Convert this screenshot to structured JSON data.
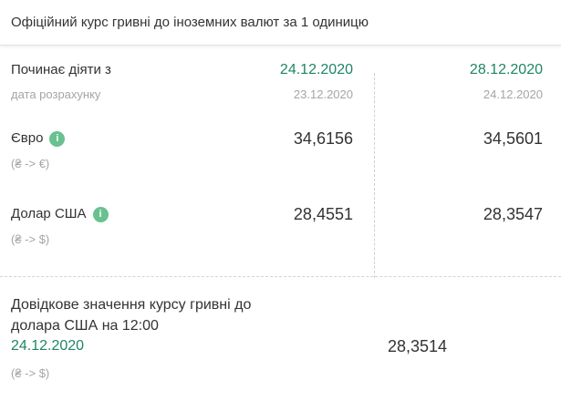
{
  "colors": {
    "accent_green": "#1e8567",
    "icon_green": "#68c18e",
    "muted_gray": "#a5a5a5",
    "text_dark": "#333333"
  },
  "header": {
    "title": "Офіційний курс гривні до іноземних валют за 1 одиницю"
  },
  "rates": {
    "effective": {
      "label": "Починає діяти з",
      "sublabel": "дата розрахунку",
      "col1_date": "24.12.2020",
      "col1_subdate": "23.12.2020",
      "col2_date": "28.12.2020",
      "col2_subdate": "24.12.2020"
    },
    "rows": [
      {
        "currency": "Євро",
        "pair": "(₴ -> €)",
        "info_glyph": "i",
        "col1": "34,6156",
        "col2": "34,5601"
      },
      {
        "currency": "Долар США",
        "pair": "(₴ -> $)",
        "info_glyph": "i",
        "col1": "28,4551",
        "col2": "28,3547"
      }
    ]
  },
  "reference": {
    "title_line1": "Довідкове значення курсу гривні до",
    "title_line2": "долара США на 12:00",
    "date": "24.12.2020",
    "pair": "(₴ -> $)",
    "value": "28,3514"
  }
}
